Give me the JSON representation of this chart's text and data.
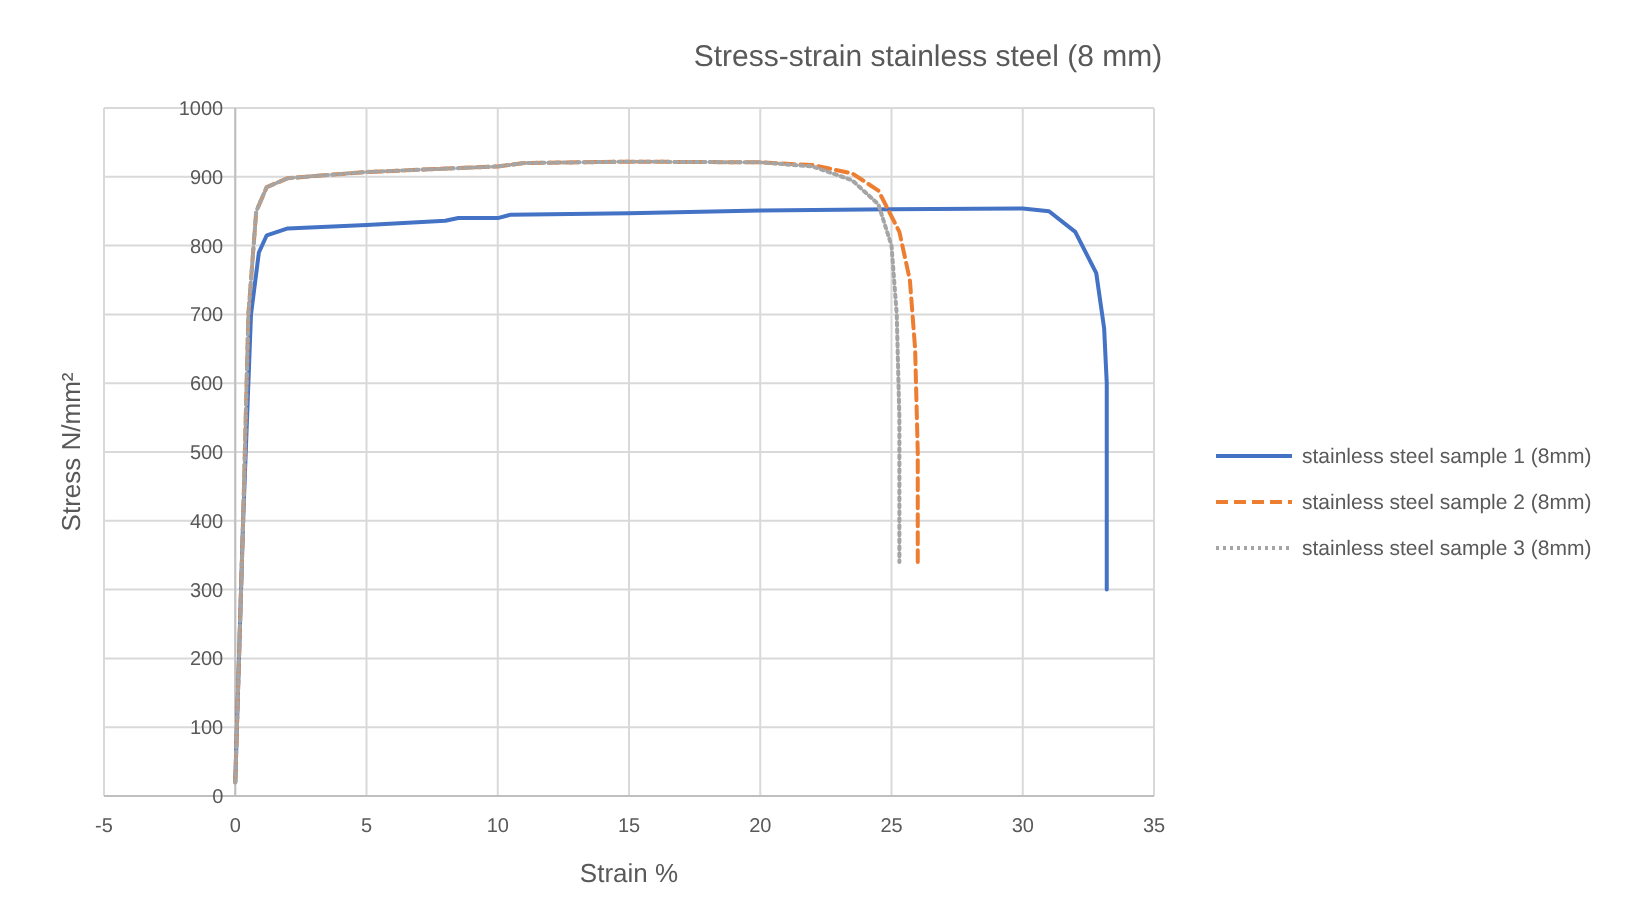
{
  "chart_data": {
    "type": "line",
    "title": "Stress-strain stainless steel (8 mm)",
    "xlabel": "Strain %",
    "ylabel": "Stress N/mm²",
    "xlim": [
      -5,
      35
    ],
    "xticks": [
      -5,
      0,
      5,
      10,
      15,
      20,
      25,
      30,
      35
    ],
    "ylim": [
      0,
      1000
    ],
    "yticks": [
      0,
      100,
      200,
      300,
      400,
      500,
      600,
      700,
      800,
      900,
      1000
    ],
    "grid": true,
    "legend": "right",
    "marker": "none",
    "series": [
      {
        "name": "stainless steel sample 1 (8mm)",
        "color": "#4472c4",
        "line_style": "solid",
        "x": [
          0,
          0.3,
          0.6,
          0.9,
          1.2,
          2,
          5,
          8,
          8.5,
          10,
          10.5,
          15,
          20,
          25,
          30,
          31,
          32,
          32.8,
          33.1,
          33.2,
          33.2
        ],
        "values": [
          20,
          400,
          700,
          790,
          815,
          825,
          830,
          836,
          840,
          840,
          845,
          847,
          851,
          853,
          854,
          850,
          820,
          760,
          680,
          600,
          300
        ]
      },
      {
        "name": "stainless steel sample 2 (8mm)",
        "color": "#ed7d31",
        "line_style": "dashed",
        "x": [
          0,
          0.3,
          0.5,
          0.8,
          1.2,
          2,
          5,
          10,
          11,
          15,
          20,
          22,
          23.5,
          24.5,
          25.3,
          25.7,
          25.9,
          26,
          26
        ],
        "values": [
          20,
          400,
          700,
          850,
          885,
          898,
          907,
          915,
          920,
          922,
          921,
          917,
          905,
          880,
          820,
          750,
          650,
          500,
          340
        ]
      },
      {
        "name": "stainless steel sample 3 (8mm)",
        "color": "#a5a5a5",
        "line_style": "dotted",
        "x": [
          0,
          0.3,
          0.5,
          0.8,
          1.2,
          2,
          5,
          10,
          11,
          15,
          20,
          22,
          23.5,
          24.5,
          25,
          25.2,
          25.3,
          25.3
        ],
        "values": [
          20,
          400,
          700,
          850,
          885,
          898,
          907,
          915,
          920,
          922,
          921,
          915,
          895,
          860,
          800,
          700,
          550,
          340
        ]
      }
    ]
  }
}
